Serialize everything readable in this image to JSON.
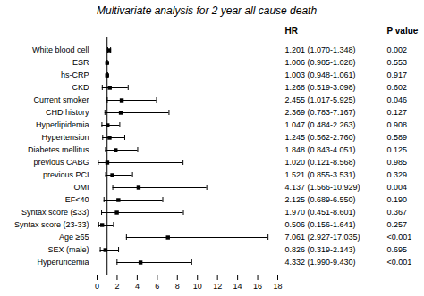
{
  "chart_data": {
    "type": "forest",
    "title": "Multivariate analysis for 2 year all cause death",
    "categories": [
      "White blood cell",
      "ESR",
      "hs-CRP",
      "CKD",
      "Current smoker",
      "CHD history",
      "Hyperlipidemia",
      "Hypertension",
      "Diabetes mellitus",
      "previous CABG",
      "previous PCI",
      "OMI",
      "EF<40",
      "Syntax score (≤33)",
      "Syntax score (23-33)",
      "Age ≥65",
      "SEX (male)",
      "Hyperuricemia"
    ],
    "values": [
      1.201,
      1.006,
      1.003,
      1.268,
      2.455,
      2.369,
      1.047,
      1.245,
      1.848,
      1.02,
      1.521,
      4.137,
      2.125,
      1.97,
      0.506,
      7.061,
      0.826,
      4.332
    ],
    "ci_low": [
      1.07,
      0.985,
      0.948,
      0.519,
      1.017,
      0.783,
      0.484,
      0.562,
      0.843,
      0.121,
      0.855,
      1.566,
      0.689,
      0.451,
      0.156,
      2.927,
      0.319,
      1.99
    ],
    "ci_high": [
      1.348,
      1.028,
      1.061,
      3.098,
      5.925,
      7.167,
      2.263,
      2.76,
      4.051,
      8.568,
      3.531,
      10.929,
      6.55,
      8.601,
      1.641,
      17.035,
      2.143,
      9.43
    ],
    "columns": [
      {
        "name": "HR",
        "values": [
          "1.201 (1.070-1.348)",
          "1.006 (0.985-1.028)",
          "1.003 (0.948-1.061)",
          "1.268 (0.519-3.098)",
          "2.455 (1.017-5.925)",
          "2.369 (0.783-7.167)",
          "1.047 (0.484-2.263)",
          "1.245 (0.562-2.760)",
          "1.848 (0.843-4.051)",
          "1.020 (0.121-8.568)",
          "1.521 (0.855-3.531)",
          "4.137 (1.566-10.929)",
          "2.125 (0.689-6.550)",
          "1.970 (0.451-8.601)",
          "0.506 (0.156-1.641)",
          "7.061 (2.927-17.035)",
          "0.826 (0.319-2.143)",
          "4.332 (1.990-9.430)"
        ]
      },
      {
        "name": "P value",
        "values": [
          "0.002",
          "0.553",
          "0.917",
          "0.602",
          "0.046",
          "0.127",
          "0.908",
          "0.589",
          "0.125",
          "0.985",
          "0.329",
          "0.004",
          "0.190",
          "0.367",
          "0.257",
          "<0.001",
          "0.695",
          "<0.001"
        ]
      }
    ],
    "ref_line": 1,
    "xlim": [
      0,
      18
    ],
    "xticks": [
      0,
      2,
      4,
      6,
      8,
      10,
      12,
      14,
      16,
      18
    ]
  }
}
